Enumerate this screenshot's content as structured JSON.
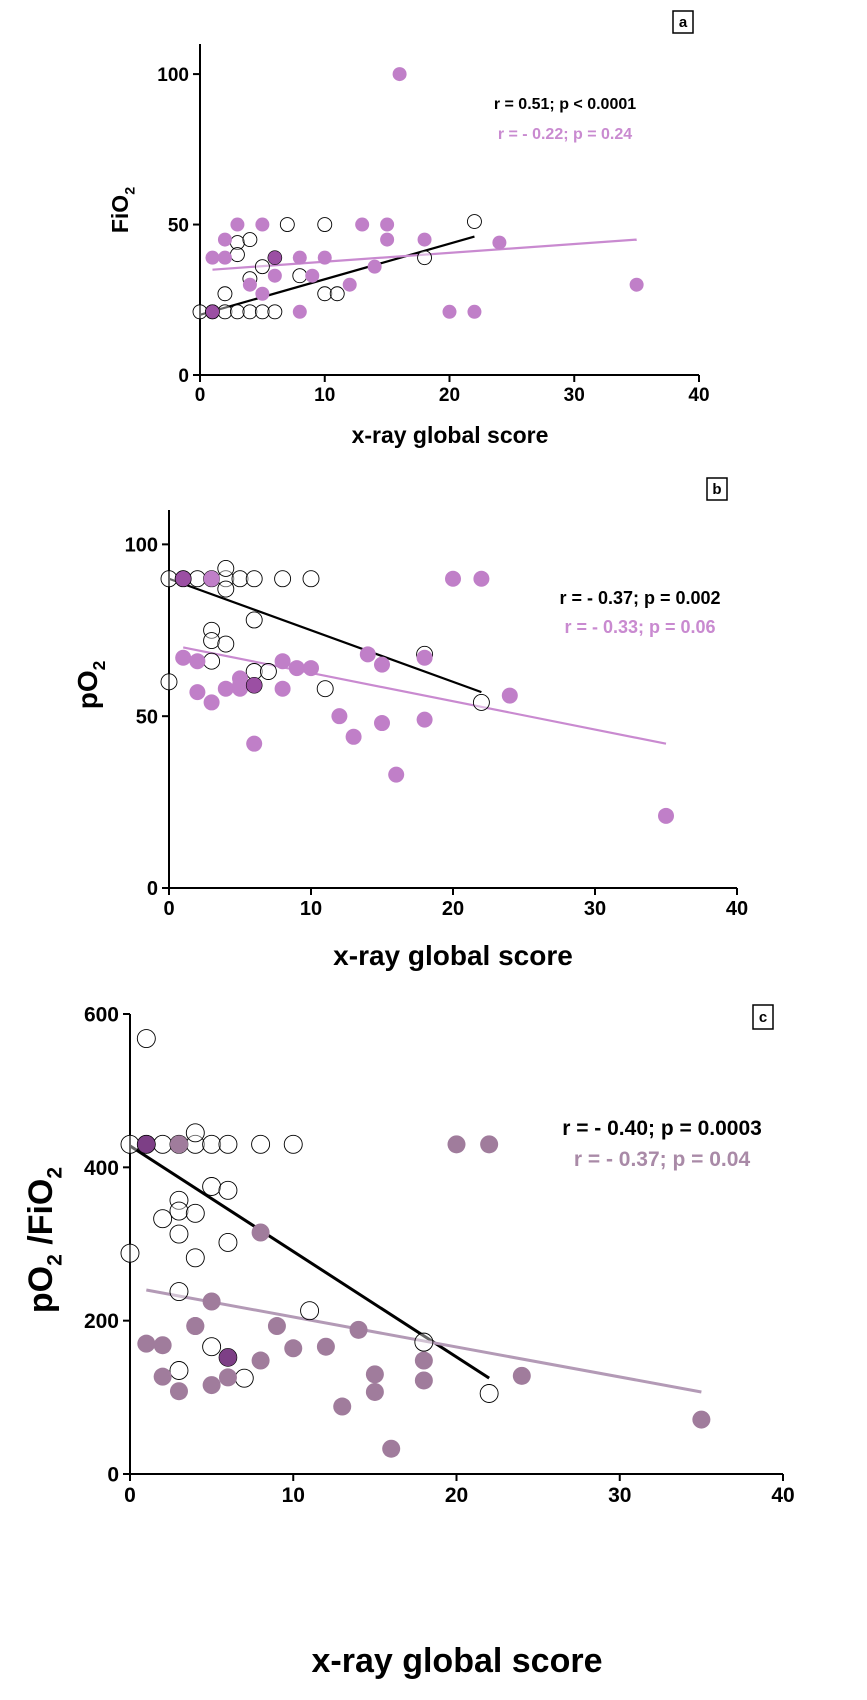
{
  "chart_data": [
    {
      "type": "scatter",
      "panel_label": "a",
      "xlabel": "x-ray global score",
      "ylabel_main": "FiO",
      "ylabel_sub": "2",
      "xlim": [
        0,
        40
      ],
      "ylim": [
        0,
        110
      ],
      "xticks": [
        "0",
        "10",
        "20",
        "30",
        "40"
      ],
      "yticks": [
        "0",
        "50",
        "100"
      ],
      "annotations": [
        "r = 0.51; p < 0.0001",
        "r = - 0.22; p = 0.24"
      ],
      "colors": {
        "open": "#000000",
        "filled": "#c07fc8",
        "dark": "#9b4fa3",
        "line_black": "#000000",
        "line_color": "#c98ad0"
      },
      "series": [
        {
          "style": "open",
          "x": [
            0,
            1,
            2,
            3,
            4,
            5,
            6,
            2,
            3,
            4,
            5,
            7,
            8,
            10,
            10,
            11,
            3,
            4,
            18,
            22
          ],
          "y": [
            21,
            21,
            21,
            21,
            21,
            21,
            21,
            27,
            44,
            45,
            36,
            50,
            33,
            50,
            27,
            27,
            40,
            32,
            39,
            51
          ]
        },
        {
          "style": "filled",
          "x": [
            1,
            2,
            2,
            3,
            4,
            5,
            5,
            6,
            8,
            8,
            9,
            10,
            12,
            13,
            14,
            15,
            15,
            16,
            18,
            20,
            22,
            24,
            35
          ],
          "y": [
            39,
            39,
            45,
            50,
            30,
            27,
            50,
            33,
            21,
            39,
            33,
            39,
            30,
            50,
            36,
            45,
            50,
            100,
            45,
            21,
            21,
            44,
            30
          ]
        },
        {
          "style": "dark",
          "x": [
            1,
            6
          ],
          "y": [
            21,
            39
          ]
        }
      ],
      "fits": [
        {
          "style": "line_black",
          "x": [
            0,
            22
          ],
          "y": [
            20,
            46
          ]
        },
        {
          "style": "line_color",
          "x": [
            1,
            35
          ],
          "y": [
            35,
            45
          ]
        }
      ]
    },
    {
      "type": "scatter",
      "panel_label": "b",
      "xlabel": "x-ray global score",
      "ylabel_main": "pO",
      "ylabel_sub": "2",
      "xlim": [
        0,
        40
      ],
      "ylim": [
        0,
        110
      ],
      "xticks": [
        "0",
        "10",
        "20",
        "30",
        "40"
      ],
      "yticks": [
        "0",
        "50",
        "100"
      ],
      "annotations": [
        "r = - 0.37; p = 0.002",
        "r = - 0.33; p = 0.06"
      ],
      "colors": {
        "open": "#000000",
        "filled": "#c07fc8",
        "dark": "#9b4fa3",
        "line_black": "#000000",
        "line_color": "#c98ad0"
      },
      "series": [
        {
          "style": "open",
          "x": [
            0,
            1,
            2,
            3,
            4,
            5,
            6,
            0,
            3,
            3,
            3,
            4,
            4,
            4,
            6,
            6,
            7,
            8,
            10,
            11,
            18,
            22
          ],
          "y": [
            90,
            90,
            90,
            90,
            90,
            90,
            90,
            60,
            75,
            72,
            66,
            93,
            87,
            71,
            78,
            63,
            63,
            90,
            90,
            58,
            68,
            54
          ]
        },
        {
          "style": "filled",
          "x": [
            1,
            2,
            2,
            3,
            3,
            4,
            5,
            5,
            5,
            6,
            8,
            8,
            9,
            10,
            12,
            13,
            14,
            15,
            15,
            16,
            18,
            18,
            20,
            22,
            24,
            35
          ],
          "y": [
            67,
            66,
            57,
            90,
            54,
            58,
            58,
            61,
            59,
            42,
            66,
            58,
            64,
            64,
            50,
            44,
            68,
            48,
            65,
            33,
            67,
            49,
            90,
            90,
            56,
            21
          ]
        },
        {
          "style": "dark",
          "x": [
            1,
            6
          ],
          "y": [
            90,
            59
          ]
        }
      ],
      "fits": [
        {
          "style": "line_black",
          "x": [
            0,
            22
          ],
          "y": [
            90,
            57
          ]
        },
        {
          "style": "line_color",
          "x": [
            1,
            35
          ],
          "y": [
            70,
            42
          ]
        }
      ]
    },
    {
      "type": "scatter",
      "panel_label": "c",
      "xlabel": "x-ray global score",
      "ylabel_main": "pO",
      "ylabel_sub": "2",
      "ylabel_mid": " /FiO",
      "ylabel_sub2": "2",
      "xlim": [
        0,
        40
      ],
      "ylim": [
        0,
        600
      ],
      "xticks": [
        "0",
        "10",
        "20",
        "30",
        "40"
      ],
      "yticks": [
        "0",
        "200",
        "400",
        "600"
      ],
      "annotations": [
        "r = - 0.40; p = 0.0003",
        "r = - 0.37; p = 0.04"
      ],
      "colors": {
        "open": "#000000",
        "filled": "#a07c9c",
        "dark": "#7d3f86",
        "line_black": "#000000",
        "line_color": "#b39ab6"
      },
      "series": [
        {
          "style": "open",
          "x": [
            0,
            1,
            2,
            3,
            4,
            5,
            6,
            1,
            0,
            2,
            3,
            3,
            3,
            3,
            3,
            4,
            4,
            4,
            5,
            5,
            6,
            6,
            7,
            8,
            10,
            11,
            18,
            22
          ],
          "y": [
            430,
            430,
            430,
            430,
            430,
            430,
            430,
            568,
            288,
            333,
            357,
            343,
            313,
            238,
            135,
            445,
            340,
            282,
            375,
            166,
            370,
            302,
            125,
            430,
            430,
            213,
            172,
            105
          ]
        },
        {
          "style": "filled",
          "x": [
            1,
            2,
            2,
            3,
            3,
            4,
            4,
            5,
            5,
            6,
            8,
            8,
            9,
            10,
            12,
            13,
            14,
            15,
            15,
            16,
            18,
            18,
            20,
            22,
            24,
            35
          ],
          "y": [
            170,
            168,
            127,
            430,
            108,
            193,
            193,
            225,
            116,
            126,
            315,
            148,
            193,
            164,
            166,
            88,
            188,
            130,
            107,
            33,
            148,
            122,
            430,
            430,
            128,
            71
          ]
        },
        {
          "style": "dark",
          "x": [
            1,
            6
          ],
          "y": [
            430,
            152
          ]
        }
      ],
      "fits": [
        {
          "style": "line_black",
          "x": [
            0,
            22
          ],
          "y": [
            428,
            125
          ]
        },
        {
          "style": "line_color",
          "x": [
            1,
            35
          ],
          "y": [
            240,
            107
          ]
        }
      ]
    }
  ]
}
